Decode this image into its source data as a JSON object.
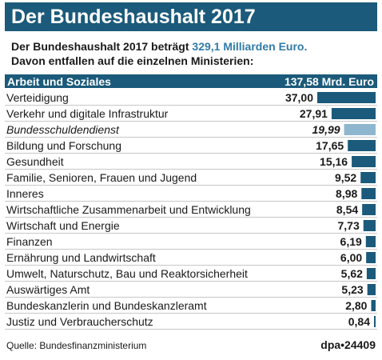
{
  "title": "Der Bundeshaushalt 2017",
  "intro": {
    "line1_prefix": "Der Bundeshaushalt 2017 beträgt",
    "line1_highlight": "329,1 Milliarden Euro.",
    "line2": "Davon entfallen auf die einzelnen Ministerien:"
  },
  "colors": {
    "header_bg": "#1b5a7a",
    "bar": "#1b5a7a",
    "bar_highlight": "#8fb6cf",
    "accent_text": "#2f7ba8",
    "separator": "#c8c8c8"
  },
  "chart_data": {
    "type": "bar",
    "orientation": "horizontal",
    "unit": "Mrd. Euro",
    "categories": [
      "Arbeit und Soziales",
      "Verteidigung",
      "Verkehr und digitale Infrastruktur",
      "Bundesschuldendienst",
      "Bildung und Forschung",
      "Gesundheit",
      "Familie, Senioren, Frauen und Jugend",
      "Inneres",
      "Wirtschaftliche Zusammenarbeit und Entwicklung",
      "Wirtschaft und Energie",
      "Finanzen",
      "Ernährung und Landwirtschaft",
      "Umwelt, Naturschutz, Bau und Reaktorsicherheit",
      "Auswärtiges Amt",
      "Bundeskanzlerin und Bundeskanzleramt",
      "Justiz und Verbraucherschutz"
    ],
    "values": [
      137.58,
      37.0,
      27.91,
      19.99,
      17.65,
      15.16,
      9.52,
      8.98,
      8.54,
      7.73,
      6.19,
      6.0,
      5.62,
      5.23,
      2.8,
      0.84
    ],
    "value_labels": [
      "137,58 Mrd. Euro",
      "37,00",
      "27,91",
      "19,99",
      "17,65",
      "15,16",
      "9,52",
      "8,98",
      "8,54",
      "7,73",
      "6,19",
      "6,00",
      "5,62",
      "5,23",
      "2,80",
      "0,84"
    ],
    "first_row_full_width": true,
    "italic_rows": [
      "Bundesschuldendienst"
    ],
    "highlight_rows": [
      "Bundesschuldendienst"
    ]
  },
  "footer": {
    "source": "Quelle: Bundesfinanzministerium",
    "credit": "dpa•24409"
  }
}
